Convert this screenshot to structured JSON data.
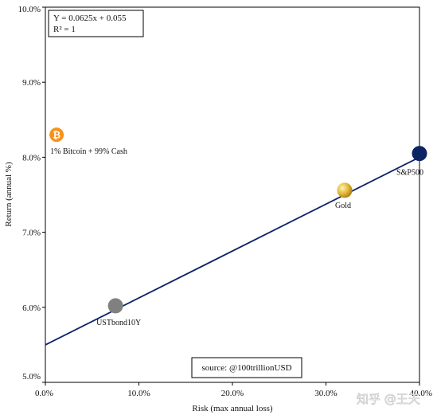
{
  "chart_data": {
    "type": "scatter",
    "title": "",
    "xlabel": "Risk (max annual loss)",
    "ylabel": "Return (annual %)",
    "xlim": [
      0,
      40
    ],
    "ylim": [
      5.0,
      10.0
    ],
    "x_ticks": [
      0,
      10,
      20,
      30,
      40
    ],
    "x_tick_labels": [
      "0.0%",
      "10.0%",
      "20.0%",
      "30.0%",
      "40.0%"
    ],
    "y_ticks": [
      5,
      6,
      7,
      8,
      9,
      10
    ],
    "y_tick_labels": [
      "5.0%",
      "6.0%",
      "7.0%",
      "8.0%",
      "9.0%",
      "10.0%"
    ],
    "grid": false,
    "points": [
      {
        "label": "1% Bitcoin + 99% Cash",
        "x": 1.2,
        "y": 8.3,
        "color": "#f7931a",
        "icon": "bitcoin-icon"
      },
      {
        "label": "USTbond10Y",
        "x": 7.5,
        "y": 6.02,
        "color": "#808080"
      },
      {
        "label": "Gold",
        "x": 32.0,
        "y": 7.56,
        "color": "#d4a82a"
      },
      {
        "label": "S&P500",
        "x": 40.0,
        "y": 8.05,
        "color": "#0b2463"
      }
    ],
    "trendline": {
      "slope": 0.0625,
      "intercept": 0.055,
      "color": "#0b2463"
    },
    "annotations": {
      "equation": "Y = 0.0625x + 0.055",
      "r_squared": "R² = 1",
      "source": "source: @100trillionUSD"
    }
  },
  "watermark": "知乎 @王天"
}
